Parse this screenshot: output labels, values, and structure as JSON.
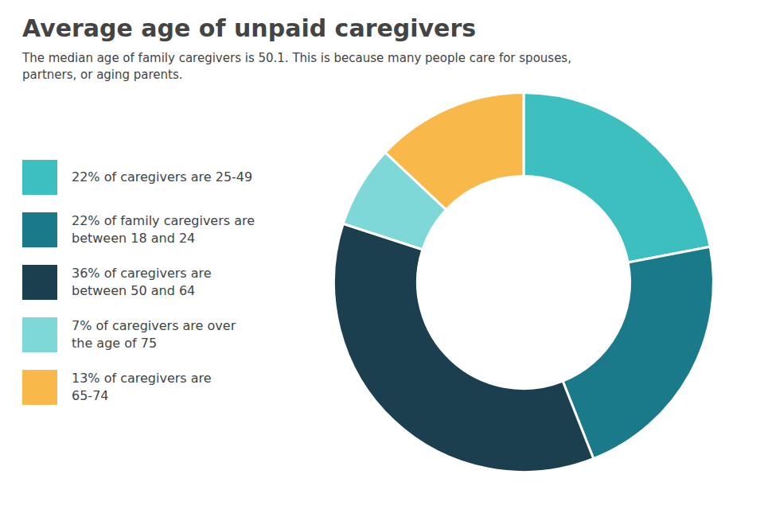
{
  "chart_data": {
    "type": "doughnut",
    "title": "Average age of unpaid caregivers",
    "subtitle": "The median age of family caregivers is 50.1. This is because many people care for spouses,\npartners, or aging parents.",
    "categories": [
      "22% of caregivers are 25-49",
      "22% of family caregivers are\nbetween 18 and 24",
      "36% of caregivers are\nbetween 50 and 64",
      "7% of caregivers are over\nthe age of 75",
      "13% of caregivers are\n65-74"
    ],
    "values": [
      22,
      22,
      36,
      7,
      13
    ],
    "colors": [
      "#3dbfbf",
      "#1a7a8a",
      "#1b3f4e",
      "#7fd8d8",
      "#f9b84a"
    ]
  }
}
